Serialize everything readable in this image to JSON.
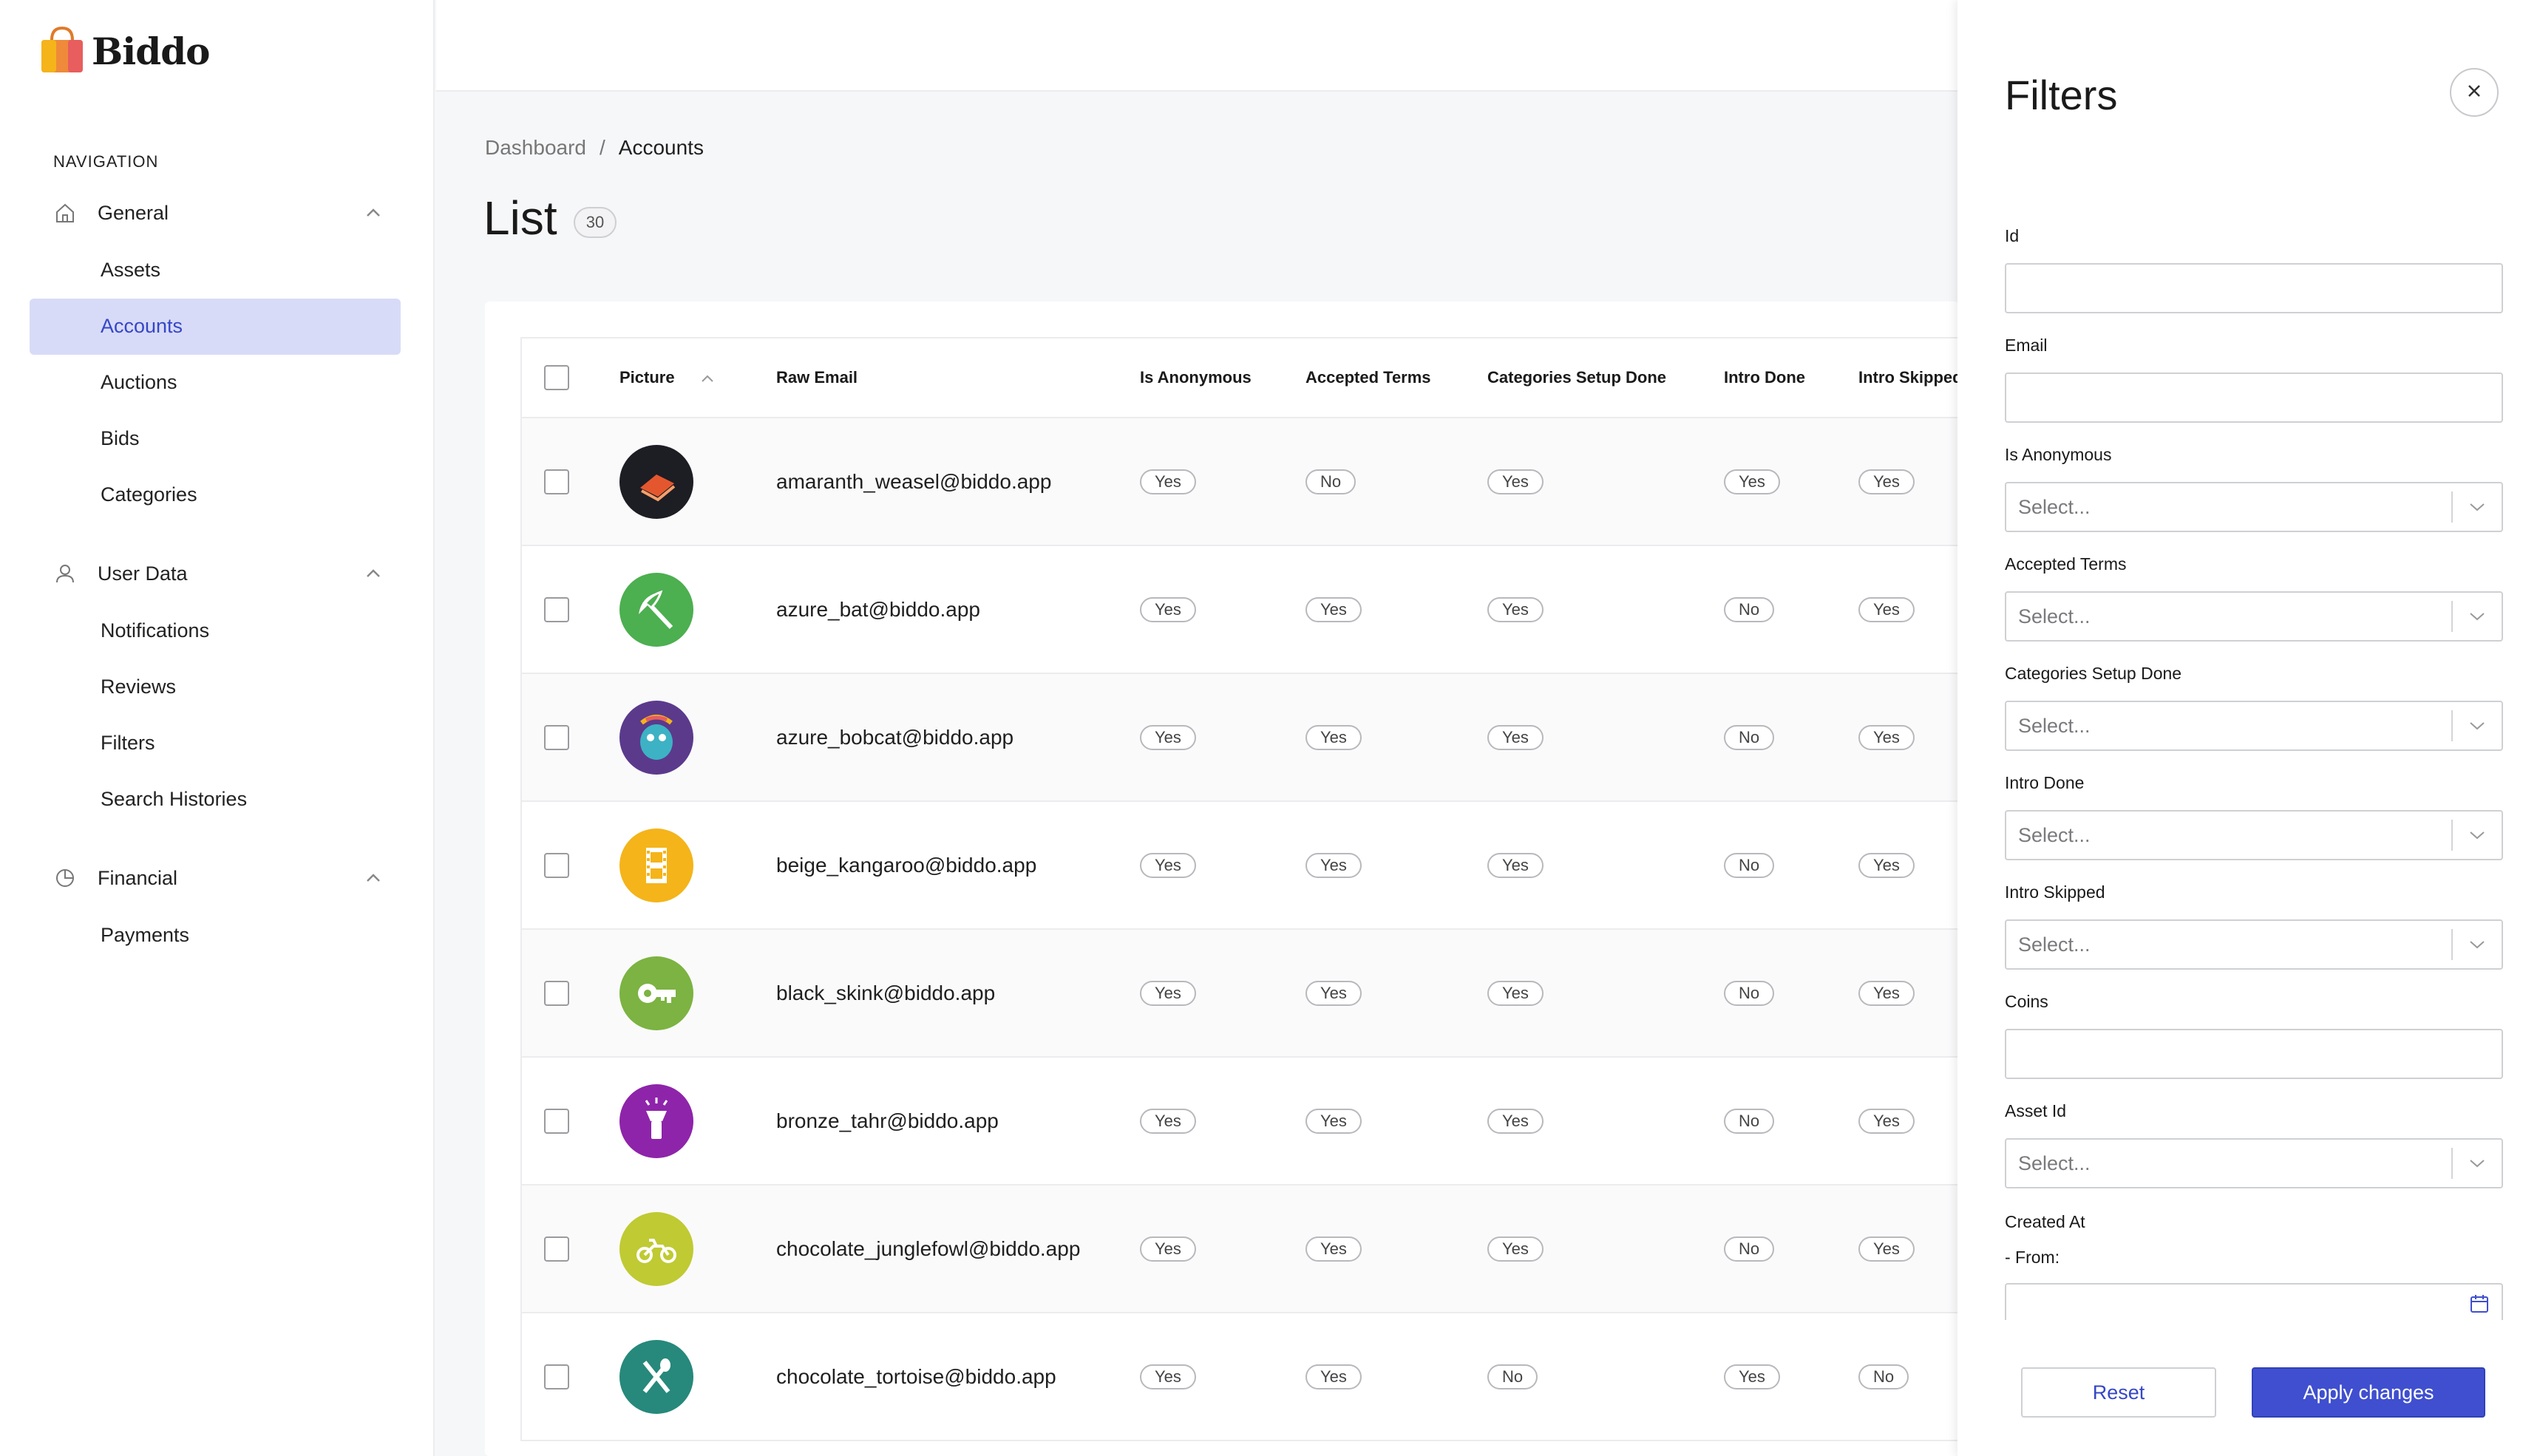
{
  "app": {
    "name": "Biddo"
  },
  "sidebar": {
    "heading": "NAVIGATION",
    "groups": [
      {
        "label": "General",
        "icon": "home-icon",
        "items": [
          "Assets",
          "Accounts",
          "Auctions",
          "Bids",
          "Categories"
        ]
      },
      {
        "label": "User Data",
        "icon": "user-icon",
        "items": [
          "Notifications",
          "Reviews",
          "Filters",
          "Search Histories"
        ]
      },
      {
        "label": "Financial",
        "icon": "pie-chart-icon",
        "items": [
          "Payments"
        ]
      }
    ],
    "active_item": "Accounts"
  },
  "breadcrumb": {
    "parent": "Dashboard",
    "separator": "/",
    "current": "Accounts"
  },
  "page": {
    "title": "List",
    "count": "30"
  },
  "table": {
    "columns": [
      "Picture",
      "Raw Email",
      "Is Anonymous",
      "Accepted Terms",
      "Categories Setup Done",
      "Intro Done",
      "Intro Skipped"
    ],
    "rows": [
      {
        "email": "amaranth_weasel@biddo.app",
        "avatar": "laptop-avatar",
        "avatar_color": "#1d1d24",
        "is_anonymous": "Yes",
        "accepted_terms": "No",
        "categories_setup_done": "Yes",
        "intro_done": "Yes",
        "intro_skipped": "Yes"
      },
      {
        "email": "azure_bat@biddo.app",
        "avatar": "umbrella-beach-avatar",
        "avatar_color": "#4caf50",
        "is_anonymous": "Yes",
        "accepted_terms": "Yes",
        "categories_setup_done": "Yes",
        "intro_done": "No",
        "intro_skipped": "Yes"
      },
      {
        "email": "azure_bobcat@biddo.app",
        "avatar": "creature-avatar",
        "avatar_color": "#5b3a8c",
        "is_anonymous": "Yes",
        "accepted_terms": "Yes",
        "categories_setup_done": "Yes",
        "intro_done": "No",
        "intro_skipped": "Yes"
      },
      {
        "email": "beige_kangaroo@biddo.app",
        "avatar": "film-avatar",
        "avatar_color": "#f4b41a",
        "is_anonymous": "Yes",
        "accepted_terms": "Yes",
        "categories_setup_done": "Yes",
        "intro_done": "No",
        "intro_skipped": "Yes"
      },
      {
        "email": "black_skink@biddo.app",
        "avatar": "key-avatar",
        "avatar_color": "#7cb342",
        "is_anonymous": "Yes",
        "accepted_terms": "Yes",
        "categories_setup_done": "Yes",
        "intro_done": "No",
        "intro_skipped": "Yes"
      },
      {
        "email": "bronze_tahr@biddo.app",
        "avatar": "flashlight-avatar",
        "avatar_color": "#8e24aa",
        "is_anonymous": "Yes",
        "accepted_terms": "Yes",
        "categories_setup_done": "Yes",
        "intro_done": "No",
        "intro_skipped": "Yes"
      },
      {
        "email": "chocolate_junglefowl@biddo.app",
        "avatar": "motorbike-avatar",
        "avatar_color": "#c0ca33",
        "is_anonymous": "Yes",
        "accepted_terms": "Yes",
        "categories_setup_done": "Yes",
        "intro_done": "No",
        "intro_skipped": "Yes"
      },
      {
        "email": "chocolate_tortoise@biddo.app",
        "avatar": "utensils-avatar",
        "avatar_color": "#26897b",
        "is_anonymous": "Yes",
        "accepted_terms": "Yes",
        "categories_setup_done": "No",
        "intro_done": "Yes",
        "intro_skipped": "No"
      }
    ]
  },
  "filters": {
    "title": "Filters",
    "fields": [
      {
        "label": "Id",
        "type": "input",
        "value": ""
      },
      {
        "label": "Email",
        "type": "input",
        "value": ""
      },
      {
        "label": "Is Anonymous",
        "type": "select",
        "placeholder": "Select..."
      },
      {
        "label": "Accepted Terms",
        "type": "select",
        "placeholder": "Select..."
      },
      {
        "label": "Categories Setup Done",
        "type": "select",
        "placeholder": "Select..."
      },
      {
        "label": "Intro Done",
        "type": "select",
        "placeholder": "Select..."
      },
      {
        "label": "Intro Skipped",
        "type": "select",
        "placeholder": "Select..."
      },
      {
        "label": "Coins",
        "type": "input",
        "value": ""
      },
      {
        "label": "Asset Id",
        "type": "select",
        "placeholder": "Select..."
      }
    ],
    "created_at": {
      "label": "Created At",
      "from_label": "- From:",
      "value": ""
    },
    "reset_label": "Reset",
    "apply_label": "Apply changes"
  },
  "colors": {
    "accent": "#3f4fcf",
    "active_nav_bg": "#d8dbf7",
    "active_nav_text": "#3547c7"
  }
}
